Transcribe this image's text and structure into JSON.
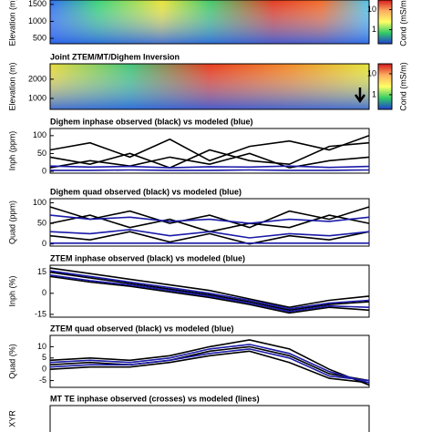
{
  "chart_data": [
    {
      "type": "heatmap",
      "y_label": "Elevation (m)",
      "ylim": [
        340,
        1630
      ],
      "yticks": [
        1500,
        1000,
        500
      ],
      "colorbar_label": "Cond (mS/m)",
      "colorbar_log": true,
      "colorbar_lim": [
        0.2,
        30
      ],
      "colorbar_ticks": [
        10,
        1
      ]
    },
    {
      "type": "heatmap",
      "title": "Joint ZTEM/MT/Dighem Inversion",
      "y_label": "Elevation (m)",
      "ylim": [
        430,
        2800
      ],
      "yticks": [
        2000,
        1000
      ],
      "colorbar_label": "Cond (mS/m)",
      "colorbar_log": true,
      "colorbar_lim": [
        0.2,
        30
      ],
      "colorbar_ticks": [
        10,
        1
      ]
    },
    {
      "type": "line",
      "title": "Dighem inphase observed (black) vs modeled (blue)",
      "y_label": "Inph (ppm)",
      "ylim": [
        -5,
        120
      ],
      "yticks": [
        0,
        50,
        100
      ],
      "x": [
        0,
        1,
        2,
        3,
        4,
        5,
        6,
        7,
        8
      ],
      "xlim": [
        0,
        8
      ],
      "series": [
        {
          "color": "#000000",
          "values": [
            60,
            80,
            40,
            90,
            30,
            70,
            85,
            60,
            100
          ]
        },
        {
          "color": "#000000",
          "values": [
            40,
            20,
            50,
            10,
            60,
            30,
            20,
            70,
            80
          ]
        },
        {
          "color": "#000000",
          "values": [
            10,
            30,
            15,
            40,
            20,
            50,
            10,
            30,
            40
          ]
        },
        {
          "color": "#1a1aa8",
          "values": [
            3,
            3,
            4,
            3,
            3,
            4,
            3,
            3,
            4
          ]
        },
        {
          "color": "#1a1aa8",
          "values": [
            15,
            12,
            14,
            10,
            13,
            12,
            15,
            11,
            14
          ]
        }
      ]
    },
    {
      "type": "line",
      "title": "Dighem quad observed (black) vs modeled (blue)",
      "y_label": "Quad (ppm)",
      "ylim": [
        -5,
        110
      ],
      "yticks": [
        0,
        50,
        100
      ],
      "x": [
        0,
        1,
        2,
        3,
        4,
        5,
        6,
        7,
        8
      ],
      "xlim": [
        0,
        8
      ],
      "series": [
        {
          "color": "#000000",
          "values": [
            90,
            60,
            80,
            50,
            70,
            40,
            80,
            60,
            90
          ]
        },
        {
          "color": "#000000",
          "values": [
            50,
            70,
            40,
            60,
            30,
            50,
            40,
            70,
            50
          ]
        },
        {
          "color": "#000000",
          "values": [
            20,
            10,
            30,
            5,
            25,
            0,
            20,
            10,
            30
          ]
        },
        {
          "color": "#1a1aa8",
          "values": [
            70,
            60,
            65,
            55,
            60,
            50,
            60,
            55,
            65
          ]
        },
        {
          "color": "#1a1aa8",
          "values": [
            30,
            25,
            35,
            20,
            30,
            15,
            25,
            20,
            30
          ]
        },
        {
          "color": "#1a1aa8",
          "values": [
            2,
            2,
            2,
            2,
            2,
            2,
            2,
            2,
            2
          ]
        }
      ]
    },
    {
      "type": "line",
      "title": "ZTEM inphase observed (black) vs modeled (blue)",
      "y_label": "Inph (%)",
      "ylim": [
        -17,
        20
      ],
      "yticks": [
        15,
        0,
        -15
      ],
      "x": [
        0,
        1,
        2,
        3,
        4,
        5,
        6,
        7,
        8
      ],
      "xlim": [
        0,
        8
      ],
      "series": [
        {
          "color": "#000000",
          "values": [
            18,
            14,
            10,
            6,
            2,
            -4,
            -10,
            -5,
            -2
          ]
        },
        {
          "color": "#000000",
          "values": [
            15,
            11,
            7,
            3,
            -1,
            -6,
            -12,
            -8,
            -6
          ]
        },
        {
          "color": "#000000",
          "values": [
            12,
            8,
            5,
            1,
            -3,
            -8,
            -14,
            -10,
            -12
          ]
        },
        {
          "color": "#1a1aa8",
          "values": [
            16,
            12,
            8,
            4,
            0,
            -5,
            -11,
            -7,
            -5
          ]
        },
        {
          "color": "#1a1aa8",
          "values": [
            13,
            9,
            6,
            2,
            -2,
            -7,
            -13,
            -9,
            -10
          ]
        }
      ]
    },
    {
      "type": "line",
      "title": "ZTEM quad observed (black) vs modeled (blue)",
      "y_label": "Quad (%)",
      "ylim": [
        -8,
        15
      ],
      "yticks": [
        10,
        5,
        0,
        -5
      ],
      "x": [
        0,
        1,
        2,
        3,
        4,
        5,
        6,
        7,
        8
      ],
      "xlim": [
        0,
        8
      ],
      "series": [
        {
          "color": "#000000",
          "values": [
            4,
            5,
            4,
            6,
            10,
            13,
            9,
            0,
            -7
          ]
        },
        {
          "color": "#000000",
          "values": [
            2,
            3,
            2,
            4,
            8,
            10,
            6,
            -2,
            -5
          ]
        },
        {
          "color": "#000000",
          "values": [
            0,
            1,
            1,
            3,
            6,
            8,
            3,
            -4,
            -6
          ]
        },
        {
          "color": "#1a1aa8",
          "values": [
            3,
            4,
            3,
            5,
            9,
            11,
            7,
            -1,
            -6
          ]
        },
        {
          "color": "#1a1aa8",
          "values": [
            1,
            2,
            2,
            4,
            7,
            9,
            5,
            -3,
            -5
          ]
        }
      ]
    },
    {
      "type": "line",
      "title": "MT TE inphase observed (crosses) vs modeled (lines)",
      "y_label": "XYR"
    }
  ]
}
